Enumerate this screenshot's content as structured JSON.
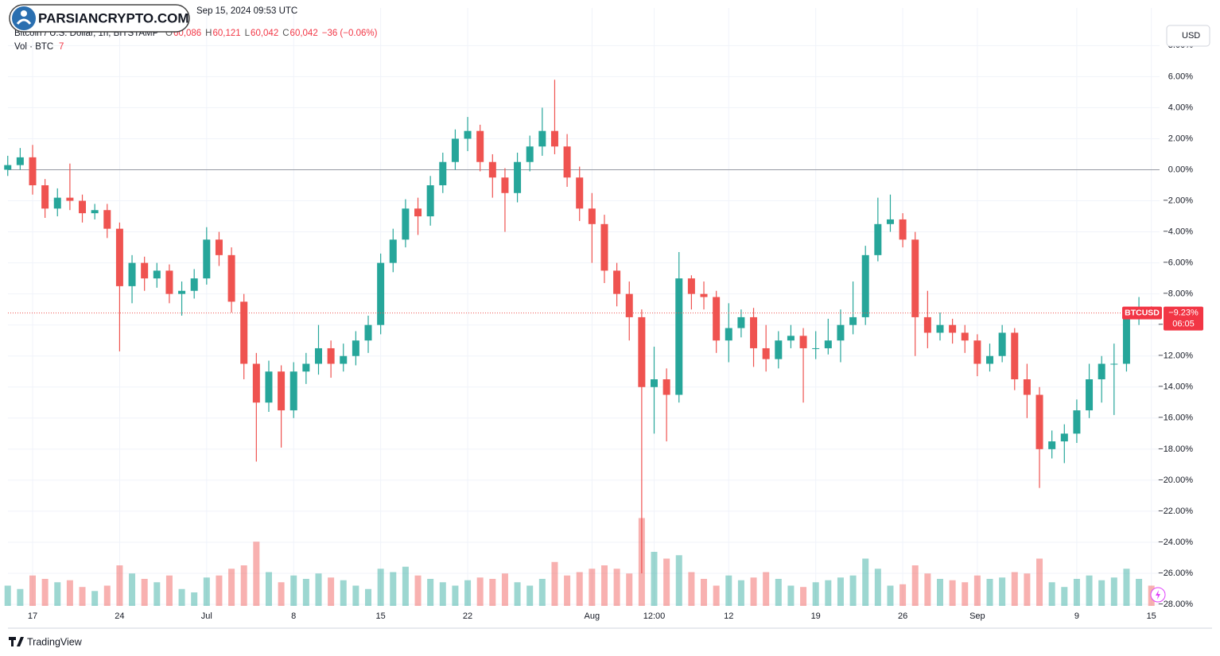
{
  "header": {
    "timestamp": "Sep 15, 2024 09:53 UTC",
    "watermark": "PARSIANCRYPTO.COM",
    "symbol": "Bitcoin / U.S. Dollar, 1h, BITSTAMP",
    "ohlc": [
      {
        "key": "O",
        "value": "60,086"
      },
      {
        "key": "H",
        "value": "60,121"
      },
      {
        "key": "L",
        "value": "60,042"
      },
      {
        "key": "C",
        "value": "60,042"
      }
    ],
    "change": "−36 (−0.06%)",
    "volume_label": "Vol · BTC",
    "volume_value": "7",
    "currency": "USD"
  },
  "footer": {
    "brand": "TradingView"
  },
  "chart_data": {
    "type": "candlestick",
    "up_color": "#26a69a",
    "down_color": "#ef5350",
    "grid": true,
    "baseline": 0,
    "categories": [
      null,
      null,
      "17",
      null,
      null,
      null,
      null,
      null,
      null,
      "24",
      null,
      null,
      null,
      null,
      null,
      null,
      "Jul",
      null,
      null,
      null,
      null,
      null,
      null,
      "8",
      null,
      null,
      null,
      null,
      null,
      null,
      "15",
      null,
      null,
      null,
      null,
      null,
      null,
      "22",
      null,
      null,
      null,
      null,
      null,
      null,
      null,
      null,
      null,
      "Aug",
      null,
      null,
      null,
      null,
      "12:00",
      null,
      null,
      null,
      null,
      null,
      "12",
      null,
      null,
      null,
      null,
      null,
      null,
      "19",
      null,
      null,
      null,
      null,
      null,
      null,
      "26",
      null,
      null,
      null,
      null,
      null,
      "Sep",
      null,
      null,
      null,
      null,
      null,
      null,
      null,
      "9",
      null,
      null,
      null,
      null,
      null,
      "15"
    ],
    "open": [
      0,
      0.3,
      0.8,
      -1.0,
      -2.5,
      -1.8,
      -2.0,
      -2.8,
      -2.6,
      -3.8,
      -7.5,
      -6.0,
      -7.0,
      -6.5,
      -8.0,
      -7.8,
      -7.0,
      -4.5,
      -5.5,
      -8.5,
      -12.5,
      -15.0,
      -13.0,
      -15.5,
      -13.0,
      -12.5,
      -11.5,
      -12.5,
      -12.0,
      -11.0,
      -10.0,
      -6.0,
      -4.5,
      -2.5,
      -3.0,
      -1.0,
      0.5,
      2.0,
      2.5,
      0.5,
      -0.5,
      -1.5,
      0.5,
      1.5,
      2.5,
      1.5,
      -0.5,
      -2.5,
      -3.5,
      -6.5,
      -8.0,
      -9.5,
      -14.0,
      -13.5,
      -14.5,
      -7.0,
      -8.0,
      -8.2,
      -11.0,
      -10.2,
      -9.5,
      -11.5,
      -12.2,
      -11.0,
      -10.7,
      -11.5,
      -11.5,
      -11.0,
      -10.0,
      -9.5,
      -5.5,
      -3.5,
      -3.2,
      -4.5,
      -9.5,
      -10.5,
      -10.0,
      -10.5,
      -11.0,
      -12.5,
      -12.0,
      -10.5,
      -13.5,
      -14.5,
      -18.0,
      -17.5,
      -17.0,
      -15.5,
      -13.5,
      -12.5,
      -12.5,
      -9.5,
      -9.0
    ],
    "high": [
      0.9,
      1.4,
      1.6,
      -0.6,
      -1.2,
      0.4,
      -1.6,
      -2.2,
      -2.2,
      -3.4,
      -5.5,
      -5.6,
      -6.0,
      -6.1,
      -7.2,
      -6.4,
      -3.7,
      -4.0,
      -5.0,
      -8.0,
      -11.8,
      -12.3,
      -12.6,
      -12.4,
      -11.8,
      -10.0,
      -11.0,
      -11.2,
      -10.4,
      -9.4,
      -5.4,
      -3.8,
      -1.9,
      -1.8,
      -0.4,
      1.1,
      2.6,
      3.4,
      2.9,
      1.0,
      0.1,
      1.1,
      2.2,
      4.0,
      5.8,
      2.3,
      0.2,
      -1.5,
      -2.9,
      -6.0,
      -7.2,
      -9.0,
      -11.4,
      -12.8,
      -5.3,
      -6.8,
      -7.2,
      -7.8,
      -8.6,
      -9.0,
      -8.9,
      -10.0,
      -10.4,
      -10.0,
      -10.2,
      -10.4,
      -9.6,
      -9.0,
      -7.2,
      -4.9,
      -1.8,
      -1.6,
      -2.8,
      -4.0,
      -7.8,
      -9.2,
      -9.6,
      -10.0,
      -10.6,
      -11.2,
      -10.0,
      -10.2,
      -12.5,
      -14.0,
      -16.8,
      -16.4,
      -14.8,
      -12.5,
      -12.0,
      -11.2,
      -9.0,
      -8.2,
      -8.8
    ],
    "low": [
      -0.4,
      0,
      -1.6,
      -3.1,
      -3.0,
      -2.6,
      -3.4,
      -3.2,
      -4.4,
      -11.7,
      -8.6,
      -7.8,
      -7.6,
      -8.6,
      -9.4,
      -8.3,
      -7.4,
      -6.2,
      -9.2,
      -13.5,
      -18.8,
      -15.6,
      -17.9,
      -16.0,
      -13.8,
      -13.2,
      -13.4,
      -13.0,
      -12.6,
      -11.8,
      -10.6,
      -6.6,
      -5.0,
      -4.2,
      -3.6,
      -1.5,
      0.0,
      1.2,
      -0.1,
      -1.8,
      -4.0,
      -2.1,
      -0.1,
      0.9,
      1.0,
      -1.1,
      -3.3,
      -6.0,
      -7.3,
      -8.8,
      -11.0,
      -26.0,
      -17.0,
      -17.5,
      -15.0,
      -9.0,
      -9.0,
      -11.8,
      -12.4,
      -10.8,
      -12.7,
      -13.0,
      -12.8,
      -11.5,
      -15.0,
      -12.2,
      -11.9,
      -12.4,
      -10.6,
      -10.0,
      -5.9,
      -4.0,
      -5.0,
      -12.0,
      -11.5,
      -11.0,
      -11.2,
      -11.8,
      -13.3,
      -13.0,
      -12.4,
      -14.2,
      -16.0,
      -20.5,
      -18.6,
      -18.9,
      -17.6,
      -16.0,
      -15.0,
      -15.8,
      -13.0,
      -10.0,
      -9.6
    ],
    "close": [
      0.3,
      0.8,
      -1.0,
      -2.5,
      -1.8,
      -2.0,
      -2.8,
      -2.6,
      -3.8,
      -7.5,
      -6.0,
      -7.0,
      -6.5,
      -8.0,
      -7.8,
      -7.0,
      -4.5,
      -5.5,
      -8.5,
      -12.5,
      -15.0,
      -13.0,
      -15.5,
      -13.0,
      -12.5,
      -11.5,
      -12.5,
      -12.0,
      -11.0,
      -10.0,
      -6.0,
      -4.5,
      -2.5,
      -3.0,
      -1.0,
      0.5,
      2.0,
      2.5,
      0.5,
      -0.5,
      -1.5,
      0.5,
      1.5,
      2.5,
      1.5,
      -0.5,
      -2.5,
      -3.5,
      -6.5,
      -8.0,
      -9.5,
      -14.0,
      -13.5,
      -14.5,
      -7.0,
      -8.0,
      -8.2,
      -11.0,
      -10.2,
      -9.5,
      -11.5,
      -12.2,
      -11.0,
      -10.7,
      -11.5,
      -11.5,
      -11.0,
      -10.0,
      -9.5,
      -5.5,
      -3.5,
      -3.2,
      -4.5,
      -9.5,
      -10.5,
      -10.0,
      -10.5,
      -11.0,
      -12.5,
      -12.0,
      -10.5,
      -13.5,
      -14.5,
      -18.0,
      -17.5,
      -17.0,
      -15.5,
      -13.5,
      -12.5,
      -12.5,
      -9.5,
      -9.0,
      -9.23
    ],
    "volumes": [
      30,
      25,
      45,
      40,
      35,
      38,
      28,
      22,
      30,
      60,
      48,
      40,
      35,
      45,
      25,
      20,
      42,
      45,
      55,
      60,
      95,
      50,
      35,
      45,
      40,
      48,
      42,
      38,
      30,
      25,
      55,
      50,
      58,
      45,
      40,
      35,
      30,
      38,
      42,
      40,
      48,
      35,
      30,
      40,
      65,
      45,
      50,
      55,
      60,
      55,
      48,
      130,
      80,
      70,
      75,
      50,
      40,
      30,
      45,
      38,
      42,
      50,
      40,
      30,
      28,
      35,
      38,
      42,
      45,
      70,
      55,
      30,
      32,
      60,
      48,
      40,
      38,
      35,
      45,
      40,
      42,
      50,
      48,
      70,
      35,
      28,
      40,
      45,
      38,
      42,
      55,
      40,
      30
    ],
    "ylim": [
      -28.1,
      9.4
    ],
    "yticks": [
      {
        "value": 8,
        "label": "8.00%"
      },
      {
        "value": 6,
        "label": "6.00%"
      },
      {
        "value": 4,
        "label": "4.00%"
      },
      {
        "value": 2,
        "label": "2.00%"
      },
      {
        "value": 0,
        "label": "0.00%"
      },
      {
        "value": -2,
        "label": "−2.00%"
      },
      {
        "value": -4,
        "label": "−4.00%"
      },
      {
        "value": -6,
        "label": "−6.00%"
      },
      {
        "value": -8,
        "label": "−8.00%"
      },
      {
        "value": -10,
        "label": "−10.00%"
      },
      {
        "value": -12,
        "label": "−12.00%"
      },
      {
        "value": -14,
        "label": "−14.00%"
      },
      {
        "value": -16,
        "label": "−16.00%"
      },
      {
        "value": -18,
        "label": "−18.00%"
      },
      {
        "value": -20,
        "label": "−20.00%"
      },
      {
        "value": -22,
        "label": "−22.00%"
      },
      {
        "value": -24,
        "label": "−24.00%"
      },
      {
        "value": -26,
        "label": "−26.00%"
      },
      {
        "value": -28,
        "label": "−28.00%"
      }
    ],
    "last_price": {
      "symbol": "BTCUSD",
      "value": -9.23,
      "label": "−9.23%",
      "countdown": "06:05"
    }
  }
}
